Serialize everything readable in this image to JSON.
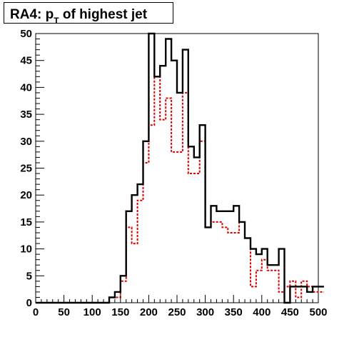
{
  "chart_data": {
    "type": "histogram",
    "title": {
      "prefix": "RA4: p",
      "subscript": "T",
      "suffix": " of highest jet"
    },
    "xlim": [
      0,
      500
    ],
    "ylim": [
      0,
      50
    ],
    "bin_width": 10,
    "x_ticks": [
      0,
      50,
      100,
      150,
      200,
      250,
      300,
      350,
      400,
      450,
      500
    ],
    "y_ticks": [
      0,
      5,
      10,
      15,
      20,
      25,
      30,
      35,
      40,
      45,
      50
    ],
    "legend": "none",
    "grid": false,
    "series": [
      {
        "style": "solid",
        "color": "#000000",
        "x_edges": [
          0,
          10,
          20,
          30,
          40,
          50,
          60,
          70,
          80,
          90,
          100,
          110,
          120,
          130,
          140,
          150,
          160,
          170,
          180,
          190,
          200,
          210,
          220,
          230,
          240,
          250,
          260,
          270,
          280,
          290,
          300,
          310,
          320,
          330,
          340,
          350,
          360,
          370,
          380,
          390,
          400,
          410,
          420,
          430,
          440,
          450,
          460,
          470,
          480,
          490,
          500
        ],
        "values": [
          0,
          0,
          0,
          0,
          0,
          0,
          0,
          0,
          0,
          0,
          0,
          0,
          0,
          1,
          2,
          5,
          17,
          20,
          22,
          30,
          50,
          42,
          44,
          49,
          45,
          39,
          47,
          29,
          27,
          33,
          14,
          18,
          17,
          17,
          17,
          18,
          15,
          12,
          10,
          9,
          10,
          7,
          7,
          10,
          0,
          3,
          3,
          3,
          2,
          3,
          3
        ]
      },
      {
        "style": "dashed",
        "color": "#e00000",
        "x_edges": [
          0,
          10,
          20,
          30,
          40,
          50,
          60,
          70,
          80,
          90,
          100,
          110,
          120,
          130,
          140,
          150,
          160,
          170,
          180,
          190,
          200,
          210,
          220,
          230,
          240,
          250,
          260,
          270,
          280,
          290,
          300,
          310,
          320,
          330,
          340,
          350,
          360,
          370,
          380,
          390,
          400,
          410,
          420,
          430,
          440,
          450,
          460,
          470,
          480,
          490,
          500
        ],
        "values": [
          0,
          0,
          0,
          0,
          0,
          0,
          0,
          0,
          0,
          0,
          0,
          0,
          0,
          1,
          1,
          4,
          14,
          11,
          19,
          26,
          33,
          42,
          34,
          38,
          28,
          28,
          39,
          24,
          24,
          30,
          14,
          15,
          15,
          14,
          13,
          13,
          15,
          12,
          3,
          6,
          8,
          6,
          6,
          2,
          3,
          4,
          1,
          4,
          3,
          2,
          2
        ]
      }
    ]
  }
}
